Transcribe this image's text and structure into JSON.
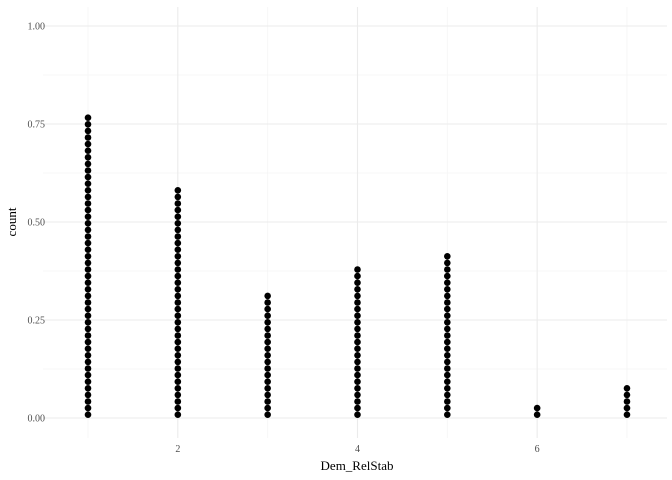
{
  "chart_data": {
    "type": "dotplot",
    "xlabel": "Dem_RelStab",
    "ylabel": "count",
    "xlim": [
      0.7,
      7.3
    ],
    "ylim": [
      0,
      1.0
    ],
    "x_ticks": [
      2,
      4,
      6
    ],
    "x_tick_labels": [
      "2",
      "4",
      "6"
    ],
    "x_minor_ticks": [
      1,
      3,
      5,
      7
    ],
    "y_ticks": [
      0,
      0.25,
      0.5,
      0.75,
      1.0
    ],
    "y_tick_labels": [
      "0.00",
      "0.25",
      "0.50",
      "0.75",
      "1.00"
    ],
    "y_minor_ticks": [
      0.125,
      0.375,
      0.625,
      0.875
    ],
    "grid": true,
    "dot_color": "#000000",
    "grid_major_color": "#ebebeb",
    "grid_minor_color": "#f5f5f5",
    "points": [
      {
        "x": 1,
        "count": 46
      },
      {
        "x": 2,
        "count": 35
      },
      {
        "x": 3,
        "count": 19
      },
      {
        "x": 4,
        "count": 23
      },
      {
        "x": 5,
        "count": 25
      },
      {
        "x": 6,
        "count": 2
      },
      {
        "x": 7,
        "count": 5
      }
    ]
  }
}
